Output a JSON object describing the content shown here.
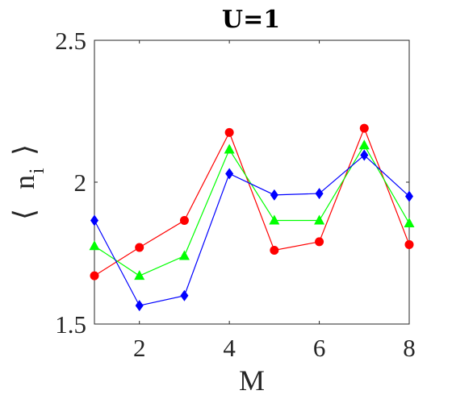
{
  "chart_data": {
    "type": "line",
    "title": "U=1",
    "xlabel": "M",
    "ylabel": {
      "left": "⟨",
      "var": "n",
      "sub": "i",
      "right": "⟩"
    },
    "xlim": [
      1,
      8
    ],
    "ylim": [
      1.5,
      2.5
    ],
    "xticks": [
      2,
      4,
      6,
      8
    ],
    "yticks": [
      1.5,
      2,
      2.5
    ],
    "ytick_labels": [
      "1.5",
      "2",
      "2.5"
    ],
    "grid": false,
    "legend": "none",
    "x": [
      1,
      2,
      3,
      4,
      5,
      6,
      7,
      8
    ],
    "series": [
      {
        "color": "#ff0000",
        "marker": "circle",
        "values": [
          1.67,
          1.77,
          1.865,
          2.175,
          1.76,
          1.79,
          2.19,
          1.78
        ]
      },
      {
        "color": "#00ff00",
        "marker": "triangle",
        "values": [
          1.775,
          1.67,
          1.74,
          2.115,
          1.865,
          1.865,
          2.13,
          1.855
        ]
      },
      {
        "color": "#0000ff",
        "marker": "diamond",
        "values": [
          1.865,
          1.565,
          1.6,
          2.03,
          1.955,
          1.96,
          2.095,
          1.95
        ]
      }
    ]
  }
}
